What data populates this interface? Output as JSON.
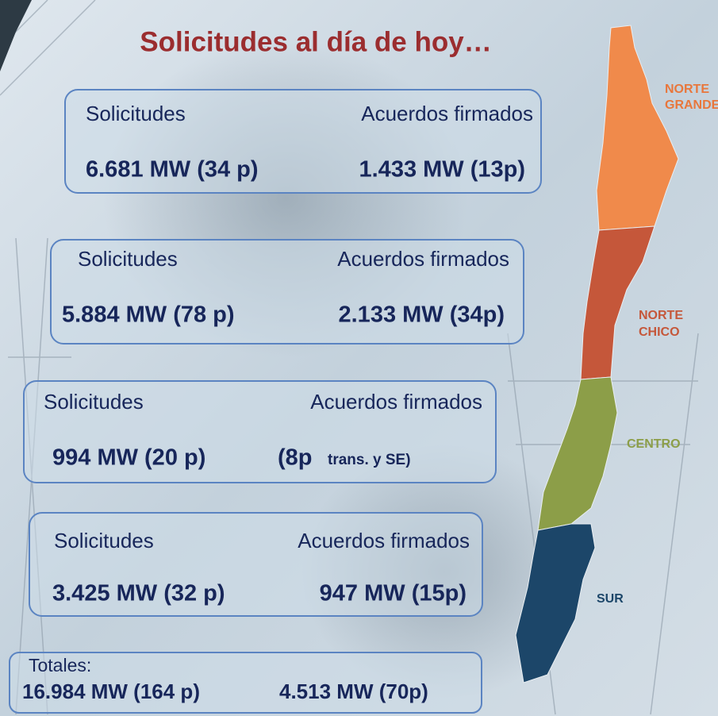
{
  "title": "Solicitudes al día de hoy…",
  "boxes": [
    {
      "left_label": "Solicitudes",
      "right_label": "Acuerdos firmados",
      "left_value": "6.681 MW (34 p)",
      "right_value": "1.433 MW (13p)"
    },
    {
      "left_label": "Solicitudes",
      "right_label": "Acuerdos firmados",
      "left_value": "5.884 MW (78 p)",
      "right_value": "2.133 MW (34p)"
    },
    {
      "left_label": "Solicitudes",
      "right_label": "Acuerdos firmados",
      "left_value": "994 MW (20 p)",
      "right_value": "(8p",
      "right_value_note": "trans. y SE)"
    },
    {
      "left_label": "Solicitudes",
      "right_label": "Acuerdos firmados",
      "left_value": "3.425 MW (32 p)",
      "right_value": "947 MW (15p)"
    }
  ],
  "totals": {
    "label": "Totales:",
    "left_value": "16.984 MW (164 p)",
    "right_value": "4.513 MW (70p)"
  },
  "map": {
    "regions": [
      {
        "line1": "NORTE",
        "line2": "GRANDE"
      },
      {
        "line1": "NORTE",
        "line2": "CHICO"
      },
      {
        "line1": "CENTRO"
      },
      {
        "line1": "SUR"
      }
    ]
  }
}
